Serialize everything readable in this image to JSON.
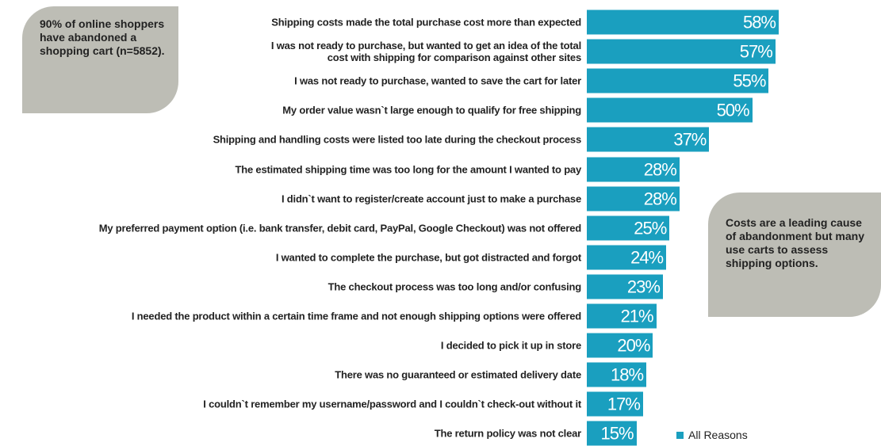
{
  "chart_data": {
    "type": "bar",
    "orientation": "horizontal",
    "categories": [
      "Shipping costs made the total purchase cost more than expected",
      "I was not ready to purchase, but wanted to get an idea of the total\ncost with shipping for comparison against other sites",
      "I was not ready to purchase, wanted to save the cart for later",
      "My order value wasn`t large enough to qualify for free shipping",
      "Shipping and handling costs were listed too late during the checkout process",
      "The estimated shipping time was too long for the amount I wanted to pay",
      "I didn`t want to register/create account just to make a purchase",
      "My preferred payment option (i.e. bank transfer, debit card, PayPal, Google Checkout) was not offered",
      "I wanted to complete the purchase, but got distracted and forgot",
      "The checkout process was too long and/or confusing",
      "I needed the product within a certain time frame and not enough shipping options were offered",
      "I decided to pick it up in store",
      "There was no guaranteed or estimated delivery date",
      "I couldn`t remember my username/password and I couldn`t check-out without it",
      "The return policy was not clear"
    ],
    "series": [
      {
        "name": "All Reasons",
        "color": "#1a9fbf",
        "values": [
          58,
          57,
          55,
          50,
          37,
          28,
          28,
          25,
          24,
          23,
          21,
          20,
          18,
          17,
          15
        ],
        "value_labels": [
          "58%",
          "57%",
          "55%",
          "50%",
          "37%",
          "28%",
          "28%",
          "25%",
          "24%",
          "23%",
          "21%",
          "20%",
          "18%",
          "17%",
          "15%"
        ]
      }
    ],
    "annotations": [
      "90% of online shoppers have abandoned a shopping cart (n=5852).",
      "Costs are a leading cause of abandonment but many use carts to assess shipping options."
    ],
    "legend": "bottom-right"
  }
}
